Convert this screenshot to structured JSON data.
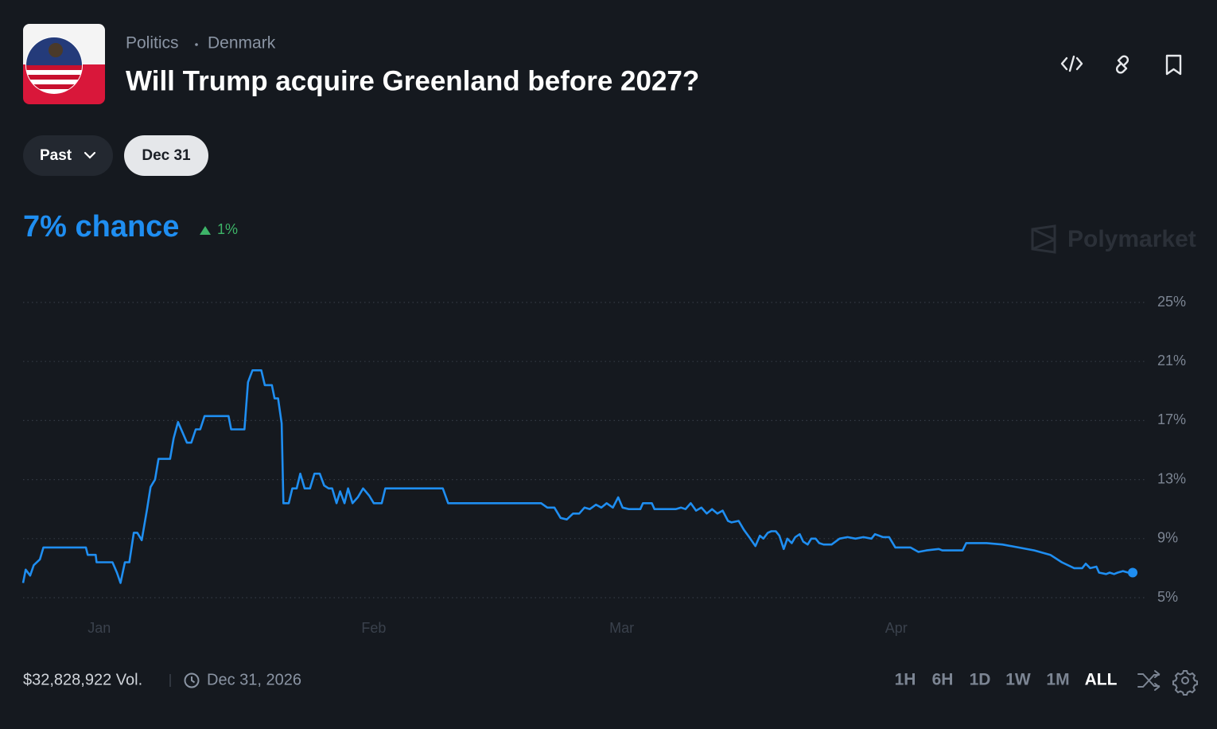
{
  "header": {
    "breadcrumb": [
      "Politics",
      "Denmark"
    ],
    "title": "Will Trump acquire Greenland before 2027?"
  },
  "filters": [
    "Past",
    "Dec 31"
  ],
  "chance": {
    "label": "7% chance",
    "change": "1%"
  },
  "watermark": "Polymarket",
  "chart_data": {
    "type": "line",
    "x": [
      -7.6,
      -7.3,
      -6.8,
      -6.4,
      -5.7,
      -5.3,
      -0.5,
      -0.3,
      0.6,
      0.7,
      2.5,
      3.0,
      3.4,
      3.9,
      4.4,
      4.9,
      5.3,
      5.8,
      6.4,
      6.8,
      7.3,
      7.7,
      9.0,
      9.4,
      9.9,
      10.4,
      10.9,
      11.4,
      11.9,
      12.4,
      12.9,
      15.6,
      15.9,
      17.4,
      17.8,
      18.3,
      19.3,
      19.7,
      20.5,
      20.8,
      21.2,
      21.6,
      21.8,
      22.4,
      22.8,
      23.3,
      23.7,
      24.2,
      24.8,
      25.3,
      25.9,
      26.4,
      26.9,
      27.3,
      27.8,
      28.2,
      28.7,
      29.1,
      29.6,
      30.2,
      30.8,
      31.5,
      32.0,
      32.9,
      33.3,
      39.8,
      40.4,
      50.9,
      51.6,
      52.4,
      53.1,
      53.8,
      54.5,
      55.2,
      55.8,
      56.4,
      57.1,
      57.7,
      58.3,
      59.0,
      59.6,
      60.1,
      60.8,
      62.1,
      62.4,
      63.4,
      63.7,
      66.1,
      66.7,
      67.2,
      67.8,
      68.4,
      69.0,
      69.6,
      70.2,
      70.8,
      71.4,
      72.0,
      72.4,
      73.2,
      73.8,
      74.4,
      75.1,
      75.6,
      76.0,
      76.5,
      76.9,
      77.4,
      77.8,
      78.3,
      78.7,
      79.2,
      79.6,
      80.1,
      80.5,
      81.0,
      81.4,
      81.9,
      82.3,
      82.8,
      83.7,
      84.6,
      85.5,
      86.4,
      87.3,
      88.2,
      88.6,
      89.5,
      90.2,
      90.9,
      91.7,
      92.6,
      93.5,
      94.4,
      95.8,
      96.2,
      98.5,
      98.9,
      101.2,
      103.0,
      104.8,
      106.6,
      108.4,
      109.7,
      111.1,
      112.0,
      112.4,
      112.9,
      113.6,
      113.9,
      114.7,
      115.1,
      115.6,
      116.0,
      116.6,
      117.2,
      117.7
    ],
    "series": [
      {
        "color": "#1f8ef1",
        "values": [
          6.0,
          6.9,
          6.5,
          7.2,
          7.6,
          8.4,
          8.4,
          7.9,
          7.9,
          7.4,
          7.4,
          6.7,
          6.0,
          7.4,
          7.4,
          9.4,
          9.4,
          8.9,
          11.0,
          12.5,
          13.0,
          14.4,
          14.4,
          15.8,
          16.9,
          16.2,
          15.5,
          15.5,
          16.4,
          16.4,
          17.3,
          17.3,
          16.4,
          16.4,
          19.6,
          20.4,
          20.4,
          19.4,
          19.4,
          18.5,
          18.5,
          16.8,
          11.4,
          11.4,
          12.4,
          12.4,
          13.4,
          12.4,
          12.4,
          13.4,
          13.4,
          12.6,
          12.4,
          12.4,
          11.4,
          12.2,
          11.4,
          12.4,
          11.4,
          11.8,
          12.4,
          11.9,
          11.4,
          11.4,
          12.4,
          12.4,
          11.4,
          11.4,
          11.1,
          11.1,
          10.4,
          10.3,
          10.7,
          10.7,
          11.1,
          11.0,
          11.3,
          11.1,
          11.4,
          11.1,
          11.8,
          11.1,
          11.0,
          11.0,
          11.4,
          11.4,
          11.0,
          11.0,
          11.1,
          11.0,
          11.4,
          10.9,
          11.1,
          10.7,
          11.0,
          10.7,
          10.9,
          10.2,
          10.1,
          10.2,
          9.6,
          9.1,
          8.5,
          9.2,
          9.0,
          9.4,
          9.5,
          9.5,
          9.2,
          8.3,
          9.0,
          8.7,
          9.1,
          9.3,
          8.8,
          8.6,
          9.0,
          9.0,
          8.7,
          8.6,
          8.6,
          9.0,
          9.1,
          9.0,
          9.1,
          9.0,
          9.3,
          9.1,
          9.1,
          8.4,
          8.4,
          8.4,
          8.1,
          8.2,
          8.3,
          8.2,
          8.2,
          8.7,
          8.7,
          8.6,
          8.4,
          8.2,
          7.9,
          7.4,
          7.0,
          7.0,
          7.3,
          7.0,
          7.1,
          6.7,
          6.6,
          6.7,
          6.6,
          6.7,
          6.8,
          6.7,
          6.7
        ]
      }
    ],
    "xlim": [
      -7.6,
      117.7
    ],
    "xticks": [
      {
        "value": 1,
        "label": "Jan"
      },
      {
        "value": 32,
        "label": "Feb"
      },
      {
        "value": 60,
        "label": "Mar"
      },
      {
        "value": 91,
        "label": "Apr"
      }
    ],
    "ylim": [
      5,
      25
    ],
    "yticks": [
      {
        "value": 5,
        "label": "5%"
      },
      {
        "value": 9,
        "label": "9%"
      },
      {
        "value": 13,
        "label": "13%"
      },
      {
        "value": 17,
        "label": "17%"
      },
      {
        "value": 21,
        "label": "21%"
      },
      {
        "value": 25,
        "label": "25%"
      }
    ],
    "grid": true
  },
  "footer": {
    "volume": "$32,828,922 Vol.",
    "end_date": "Dec 31, 2026"
  },
  "ranges": [
    "1H",
    "6H",
    "1D",
    "1W",
    "1M",
    "ALL"
  ]
}
